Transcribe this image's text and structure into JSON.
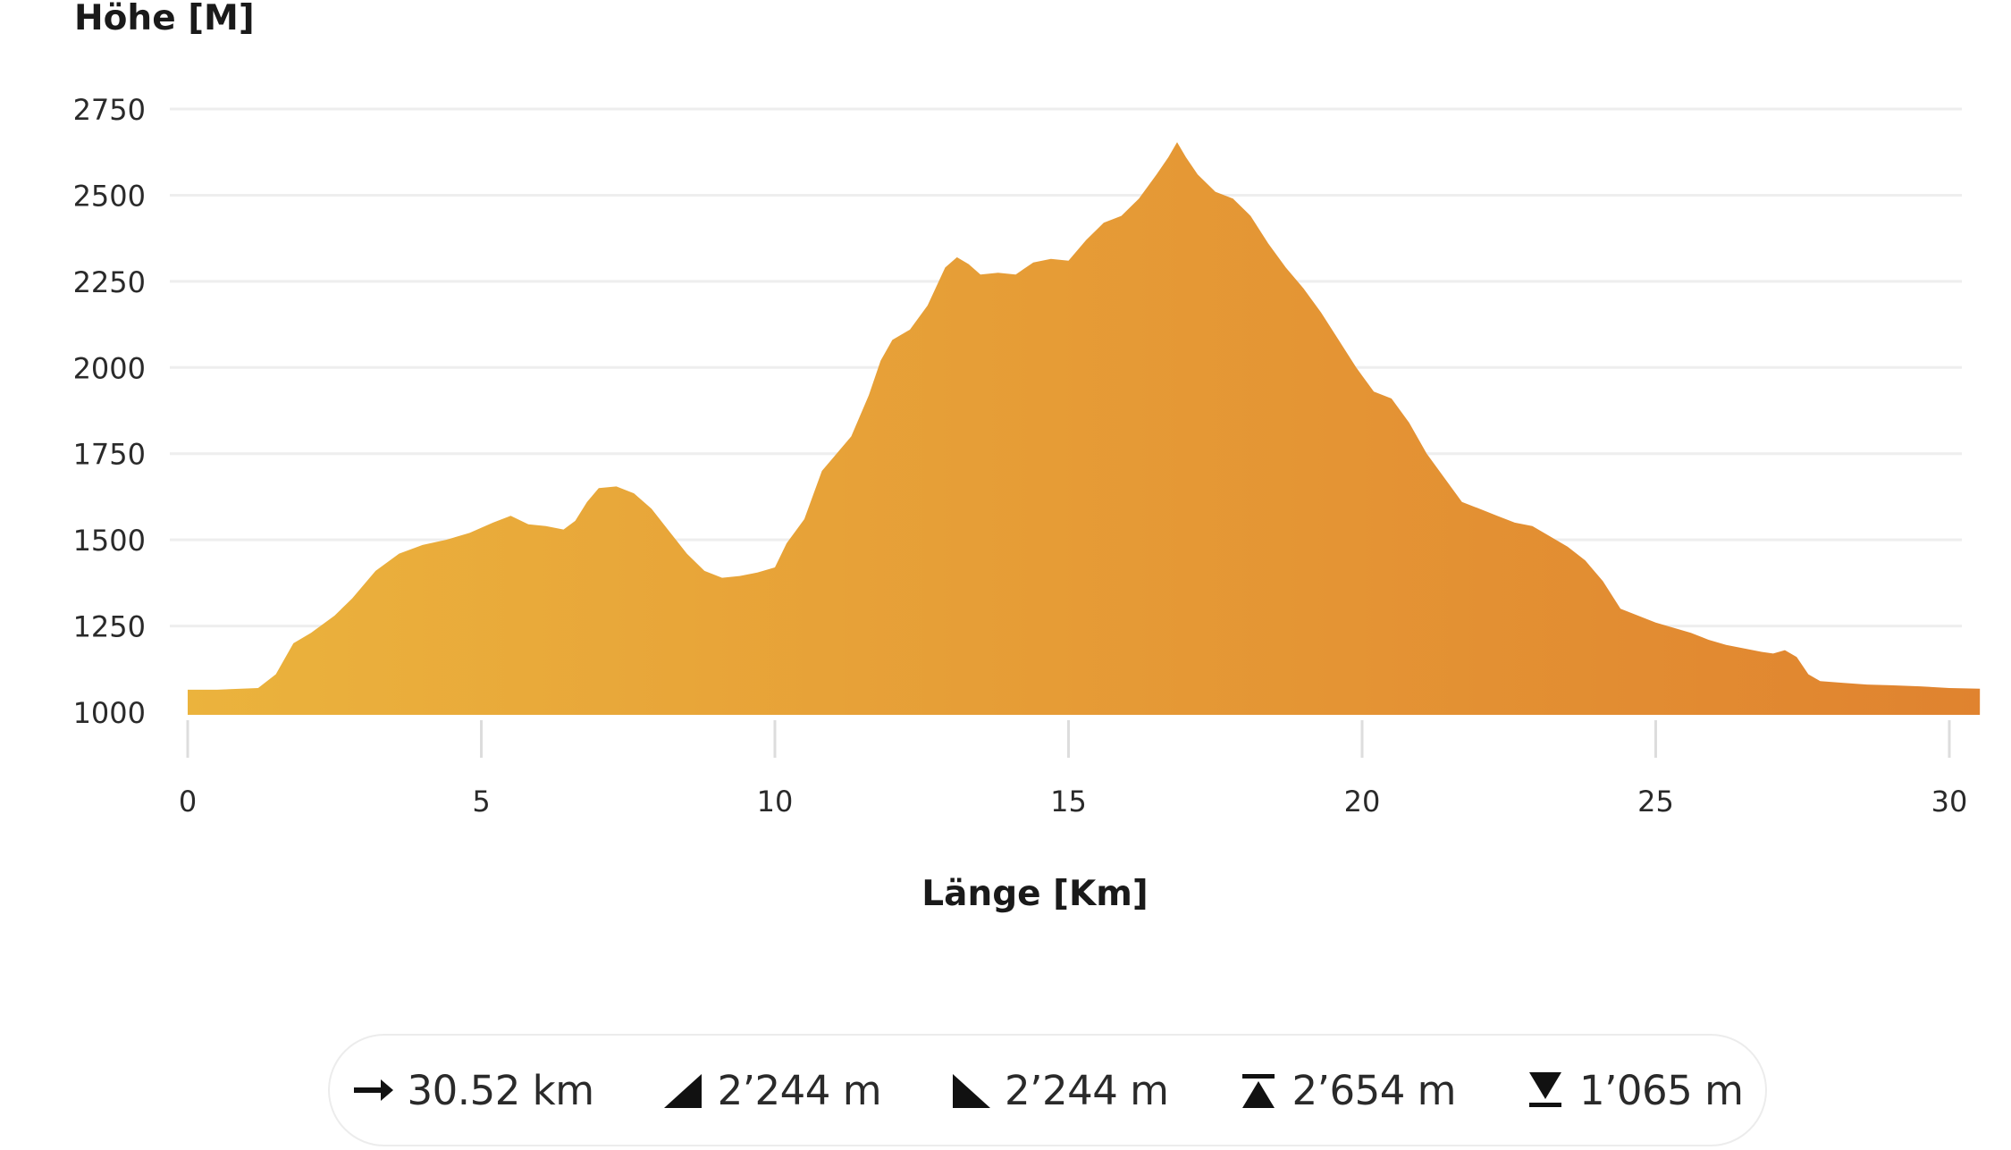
{
  "chart_data": {
    "type": "area",
    "ylabel": "Höhe [M]",
    "xlabel": "Länge [Km]",
    "title": "",
    "xlim": [
      0,
      30.52
    ],
    "ylim": [
      1000,
      2750
    ],
    "x_ticks": [
      0,
      5,
      10,
      15,
      20,
      25,
      30
    ],
    "y_ticks": [
      1000,
      1250,
      1500,
      1750,
      2000,
      2250,
      2500,
      2750
    ],
    "grid": true,
    "gradient_colors": [
      "#EBB33D",
      "#E0832F"
    ],
    "series": [
      {
        "x": [
          0,
          0.5,
          1.2,
          1.5,
          1.8,
          2.1,
          2.5,
          2.8,
          3.2,
          3.6,
          4.0,
          4.4,
          4.8,
          5.2,
          5.5,
          5.8,
          6.1,
          6.4,
          6.6,
          6.8,
          7.0,
          7.3,
          7.6,
          7.9,
          8.2,
          8.5,
          8.8,
          9.1,
          9.4,
          9.7,
          10.0,
          10.2,
          10.5,
          10.8,
          11.0,
          11.3,
          11.6,
          11.8,
          12.0,
          12.3,
          12.6,
          12.9,
          13.1,
          13.3,
          13.5,
          13.8,
          14.1,
          14.4,
          14.7,
          15.0,
          15.3,
          15.6,
          15.9,
          16.2,
          16.5,
          16.7,
          16.85,
          17.0,
          17.2,
          17.5,
          17.8,
          18.1,
          18.4,
          18.7,
          19.0,
          19.3,
          19.6,
          19.9,
          20.2,
          20.5,
          20.8,
          21.1,
          21.4,
          21.7,
          22.0,
          22.3,
          22.6,
          22.9,
          23.2,
          23.5,
          23.8,
          24.1,
          24.4,
          24.7,
          25.0,
          25.3,
          25.6,
          25.9,
          26.2,
          26.5,
          26.8,
          27.0,
          27.2,
          27.4,
          27.6,
          27.8,
          28.2,
          28.6,
          29.0,
          29.5,
          30.0,
          30.52
        ],
        "y": [
          1065,
          1065,
          1070,
          1110,
          1200,
          1230,
          1280,
          1330,
          1410,
          1460,
          1485,
          1500,
          1520,
          1550,
          1570,
          1545,
          1540,
          1530,
          1555,
          1610,
          1650,
          1655,
          1635,
          1590,
          1525,
          1460,
          1410,
          1390,
          1395,
          1405,
          1420,
          1490,
          1560,
          1700,
          1740,
          1800,
          1920,
          2020,
          2080,
          2110,
          2180,
          2290,
          2320,
          2300,
          2270,
          2275,
          2270,
          2305,
          2315,
          2310,
          2370,
          2420,
          2440,
          2490,
          2560,
          2610,
          2654,
          2610,
          2560,
          2510,
          2490,
          2440,
          2360,
          2290,
          2230,
          2160,
          2080,
          2000,
          1930,
          1910,
          1840,
          1750,
          1680,
          1610,
          1590,
          1570,
          1550,
          1540,
          1510,
          1480,
          1440,
          1380,
          1300,
          1280,
          1260,
          1245,
          1230,
          1210,
          1195,
          1185,
          1175,
          1170,
          1180,
          1160,
          1110,
          1090,
          1085,
          1080,
          1078,
          1075,
          1070,
          1068
        ]
      }
    ]
  },
  "stats": [
    {
      "icon": "right-arrow-icon",
      "value": "30.52 km"
    },
    {
      "icon": "ascent-icon",
      "value": "2’244 m"
    },
    {
      "icon": "descent-icon",
      "value": "2’244 m"
    },
    {
      "icon": "max-altitude-icon",
      "value": "2’654 m"
    },
    {
      "icon": "min-altitude-icon",
      "value": "1’065 m"
    }
  ]
}
